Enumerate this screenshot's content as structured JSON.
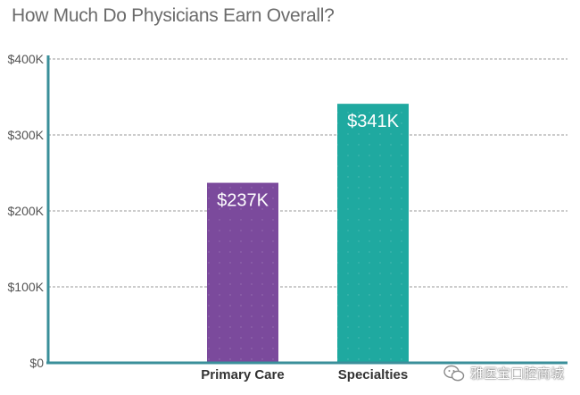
{
  "chart_data": {
    "type": "bar",
    "title": "How Much Do Physicians Earn Overall?",
    "categories": [
      "Primary Care",
      "Specialties"
    ],
    "values": [
      237,
      341
    ],
    "data_labels": [
      "$237K",
      "$341K"
    ],
    "ylim": [
      0,
      400
    ],
    "yticks": [
      0,
      100,
      200,
      300,
      400
    ],
    "ytick_labels": [
      "$0",
      "$100K",
      "$200K",
      "$300K",
      "$400K"
    ],
    "xlabel": "",
    "ylabel": "",
    "grid": true,
    "colors": {
      "Primary Care": "#7b4a9c",
      "Specialties": "#1fa9a0",
      "axis": "#3a8f9a",
      "grid": "#9a9a9a",
      "text": "#333333",
      "title": "#6b6b6b"
    }
  },
  "watermark": {
    "text": "雅医宝口腔商城",
    "icon": "wechat-icon"
  }
}
